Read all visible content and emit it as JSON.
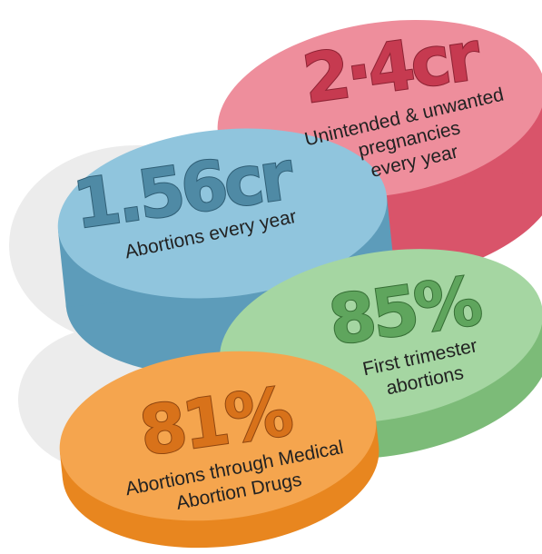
{
  "segments": [
    {
      "value": "2·4cr",
      "lines": [
        "Unintended & unwanted",
        "pregnancies",
        "every year"
      ]
    },
    {
      "value": "1.56cr",
      "lines": [
        "Abortions every year"
      ]
    },
    {
      "value": "85%",
      "lines": [
        "First trimester",
        "abortions"
      ]
    },
    {
      "value": "81%",
      "lines": [
        "Abortions through Medical",
        "Abortion Drugs"
      ]
    }
  ]
}
